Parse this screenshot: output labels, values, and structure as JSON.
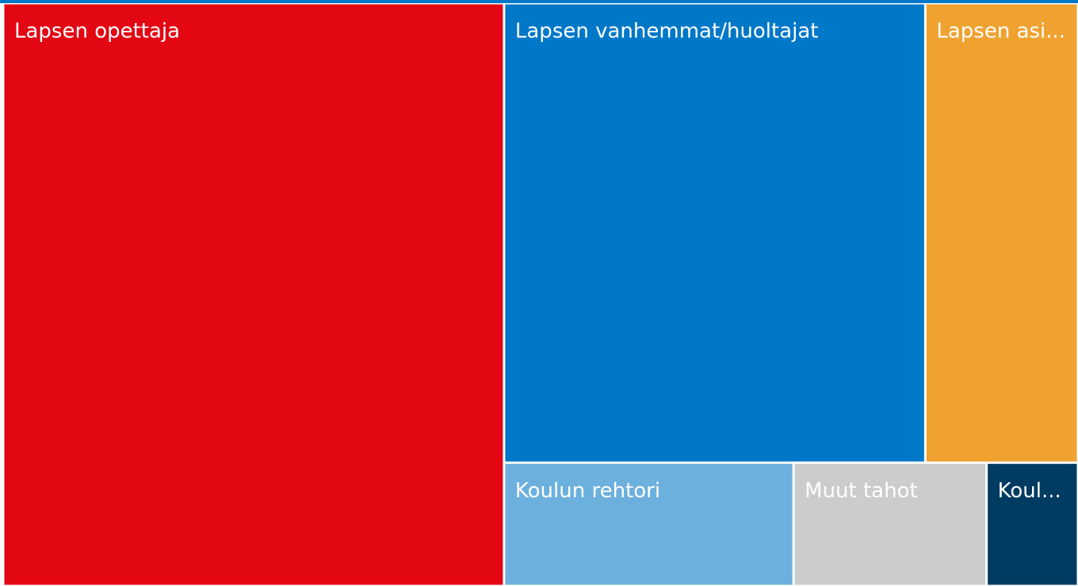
{
  "chart_data": {
    "type": "treemap",
    "categories": [
      "Lapsen opettaja",
      "Lapsen vanhemmat/huoltajat",
      "Lapsen asi...",
      "Koulun rehtori",
      "Muut tahot",
      "Koul..."
    ],
    "values": [
      46.6,
      30.9,
      11.2,
      5.7,
      3.8,
      1.8
    ],
    "colors": [
      "#e30613",
      "#0078c8",
      "#efa230",
      "#6cb0de",
      "#cccccc",
      "#003b61"
    ]
  }
}
